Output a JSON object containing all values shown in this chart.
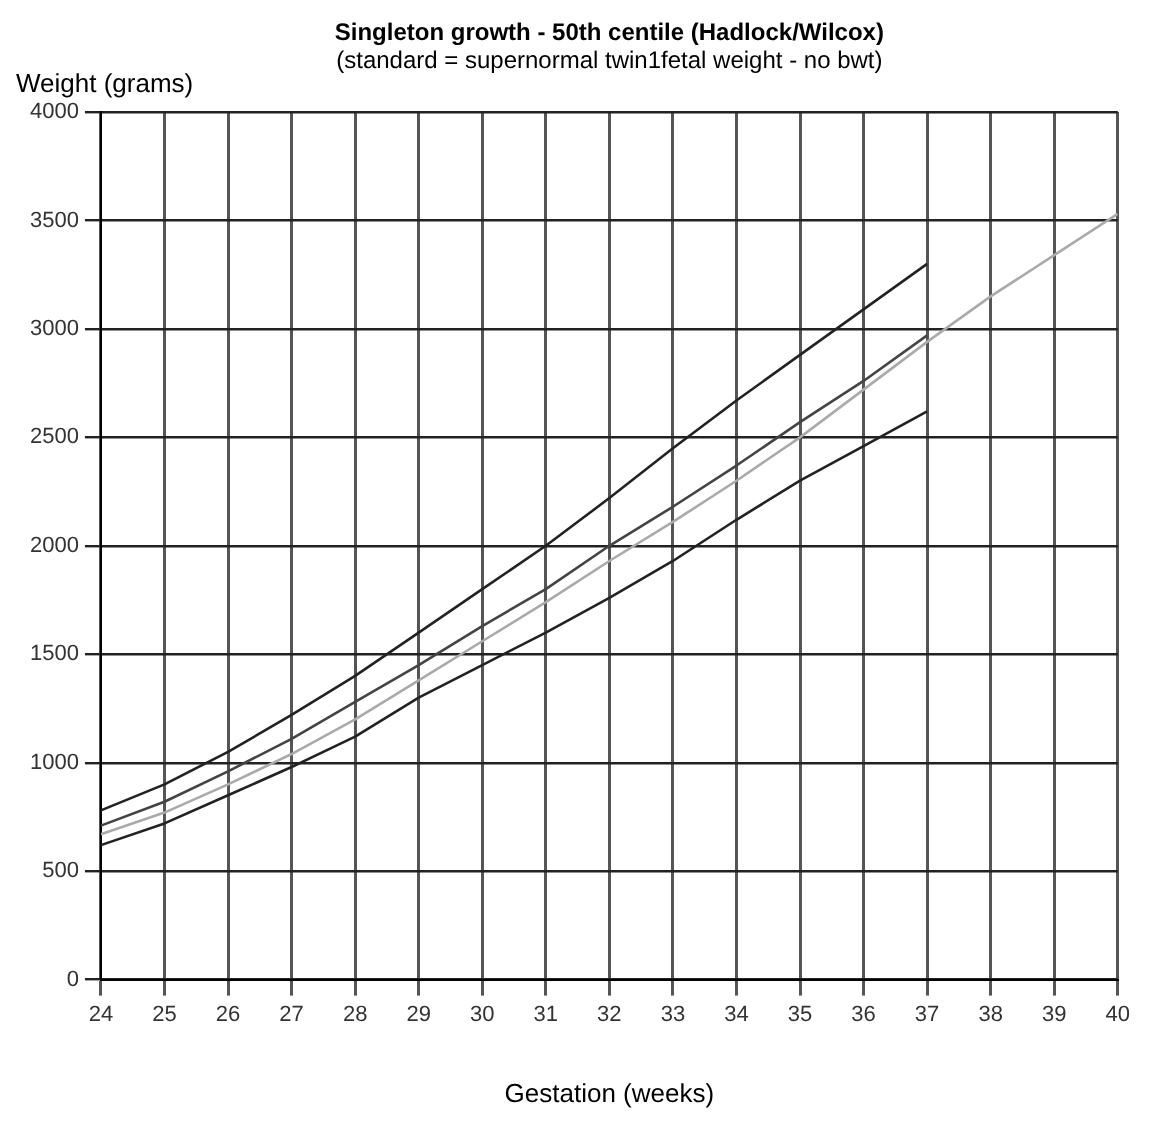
{
  "chart_data": {
    "type": "line",
    "title": "Singleton growth - 50th centile (Hadlock/Wilcox)",
    "subtitle": "(standard = supernormal twin1fetal weight - no bwt)",
    "xlabel": "Gestation (weeks)",
    "ylabel": "Weight (grams)",
    "series": [
      {
        "color": "#222222",
        "x": [
          24,
          25,
          26,
          27,
          28,
          29,
          30,
          31,
          32,
          33,
          34,
          35,
          36,
          37
        ],
        "values": [
          780,
          900,
          1050,
          1220,
          1400,
          1600,
          1800,
          2000,
          2220,
          2450,
          2670,
          2880,
          3090,
          3300
        ]
      },
      {
        "color": "#444444",
        "x": [
          24,
          25,
          26,
          27,
          28,
          29,
          30,
          31,
          32,
          33,
          34,
          35,
          36,
          37
        ],
        "values": [
          710,
          820,
          960,
          1110,
          1280,
          1450,
          1630,
          1800,
          2000,
          2180,
          2370,
          2570,
          2760,
          2970
        ]
      },
      {
        "color": "#aaaaaa",
        "x": [
          24,
          25,
          26,
          27,
          28,
          29,
          30,
          31,
          32,
          33,
          34,
          35,
          36,
          37,
          38,
          39,
          40
        ],
        "values": [
          670,
          770,
          900,
          1040,
          1200,
          1380,
          1560,
          1740,
          1930,
          2110,
          2300,
          2500,
          2720,
          2940,
          3150,
          3340,
          3530
        ]
      },
      {
        "color": "#222222",
        "x": [
          24,
          25,
          26,
          27,
          28,
          29,
          30,
          31,
          32,
          33,
          34,
          35,
          36,
          37
        ],
        "values": [
          620,
          720,
          850,
          980,
          1120,
          1300,
          1450,
          1600,
          1760,
          1930,
          2120,
          2300,
          2460,
          2620
        ]
      }
    ],
    "xlim": [
      24,
      40
    ],
    "xticks": [
      24,
      25,
      26,
      27,
      28,
      29,
      30,
      31,
      32,
      33,
      34,
      35,
      36,
      37,
      38,
      39,
      40
    ],
    "ylim": [
      0,
      4000
    ],
    "yticks": [
      0,
      500,
      1000,
      1500,
      2000,
      2500,
      3000,
      3500,
      4000
    ],
    "grid": true,
    "legend": false,
    "marker": "none",
    "line_style": "solid"
  }
}
